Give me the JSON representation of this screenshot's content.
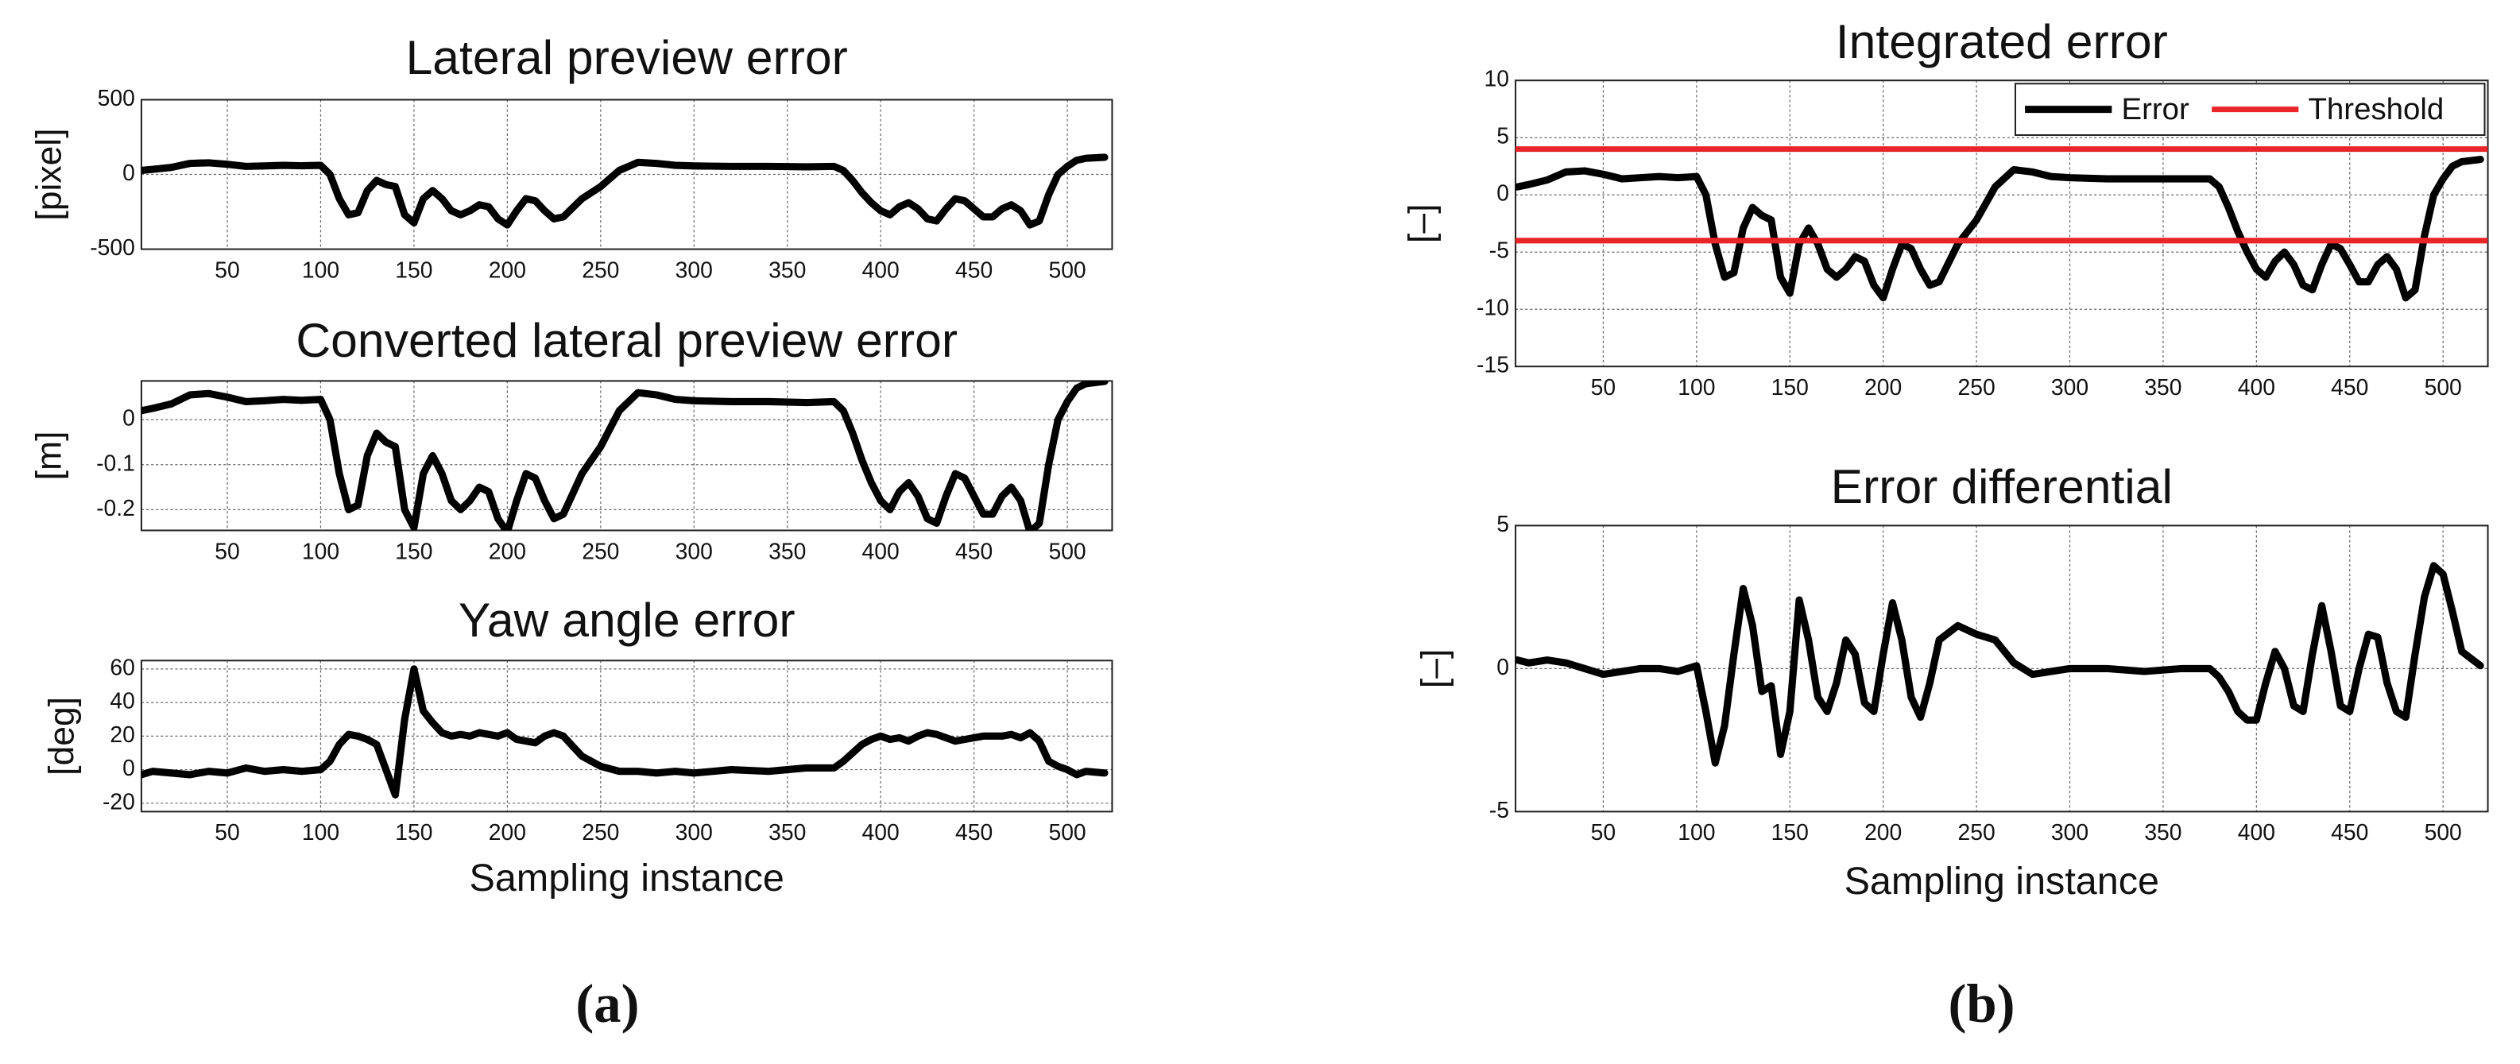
{
  "panel_labels": [
    "(a)",
    "(b)"
  ],
  "chart_data": [
    {
      "type": "line",
      "title": "Lateral preview error",
      "ylabel": "[pixel]",
      "color": "#000000",
      "grid": true,
      "xlim": [
        4,
        524
      ],
      "ylim": [
        -500,
        500
      ],
      "xticks": [
        50,
        100,
        150,
        200,
        250,
        300,
        350,
        400,
        450,
        500
      ],
      "yticks": [
        -500,
        0,
        500
      ],
      "x": [
        4,
        10,
        20,
        30,
        40,
        50,
        60,
        70,
        80,
        90,
        100,
        105,
        110,
        115,
        120,
        125,
        130,
        135,
        140,
        145,
        150,
        155,
        160,
        165,
        170,
        175,
        180,
        185,
        190,
        195,
        200,
        205,
        210,
        215,
        220,
        225,
        230,
        240,
        250,
        260,
        270,
        280,
        290,
        300,
        320,
        340,
        360,
        375,
        380,
        385,
        390,
        395,
        400,
        405,
        410,
        415,
        420,
        425,
        430,
        435,
        440,
        445,
        450,
        455,
        460,
        465,
        470,
        475,
        480,
        485,
        490,
        495,
        500,
        505,
        510,
        520
      ],
      "values": [
        27,
        34,
        47,
        74,
        78,
        68,
        54,
        57,
        61,
        58,
        61,
        0,
        -162,
        -270,
        -256,
        -108,
        -40,
        -68,
        -81,
        -270,
        -324,
        -162,
        -108,
        -162,
        -243,
        -270,
        -243,
        -203,
        -216,
        -297,
        -338,
        -243,
        -162,
        -176,
        -243,
        -297,
        -284,
        -162,
        -81,
        27,
        81,
        74,
        61,
        57,
        54,
        54,
        51,
        54,
        27,
        -41,
        -122,
        -189,
        -243,
        -270,
        -216,
        -189,
        -230,
        -297,
        -311,
        -230,
        -162,
        -176,
        -230,
        -284,
        -284,
        -230,
        -203,
        -243,
        -338,
        -311,
        -135,
        0,
        54,
        95,
        108,
        115
      ]
    },
    {
      "type": "line",
      "title": "Converted lateral preview error",
      "ylabel": "[m]",
      "color": "#000000",
      "grid": true,
      "xlim": [
        4,
        524
      ],
      "ylim": [
        -0.246,
        0.086
      ],
      "xticks": [
        50,
        100,
        150,
        200,
        250,
        300,
        350,
        400,
        450,
        500
      ],
      "yticks": [
        -0.2,
        -0.1,
        0
      ],
      "x": [
        4,
        10,
        20,
        30,
        40,
        50,
        60,
        70,
        80,
        90,
        100,
        105,
        110,
        115,
        120,
        125,
        130,
        135,
        140,
        145,
        150,
        155,
        160,
        165,
        170,
        175,
        180,
        185,
        190,
        195,
        200,
        205,
        210,
        215,
        220,
        225,
        230,
        240,
        250,
        260,
        270,
        280,
        290,
        300,
        320,
        340,
        360,
        375,
        380,
        385,
        390,
        395,
        400,
        405,
        410,
        415,
        420,
        425,
        430,
        435,
        440,
        445,
        450,
        455,
        460,
        465,
        470,
        475,
        480,
        485,
        490,
        495,
        500,
        505,
        510,
        520
      ],
      "values": [
        0.02,
        0.025,
        0.035,
        0.055,
        0.058,
        0.05,
        0.04,
        0.042,
        0.045,
        0.043,
        0.045,
        0.0,
        -0.12,
        -0.2,
        -0.19,
        -0.08,
        -0.03,
        -0.05,
        -0.06,
        -0.2,
        -0.24,
        -0.12,
        -0.08,
        -0.12,
        -0.18,
        -0.2,
        -0.18,
        -0.15,
        -0.16,
        -0.22,
        -0.25,
        -0.18,
        -0.12,
        -0.13,
        -0.18,
        -0.22,
        -0.21,
        -0.12,
        -0.06,
        0.02,
        0.06,
        0.055,
        0.045,
        0.042,
        0.04,
        0.04,
        0.038,
        0.04,
        0.02,
        -0.03,
        -0.09,
        -0.14,
        -0.18,
        -0.2,
        -0.16,
        -0.14,
        -0.17,
        -0.22,
        -0.23,
        -0.17,
        -0.12,
        -0.13,
        -0.17,
        -0.21,
        -0.21,
        -0.17,
        -0.15,
        -0.18,
        -0.25,
        -0.23,
        -0.1,
        0.0,
        0.04,
        0.07,
        0.08,
        0.085
      ]
    },
    {
      "type": "line",
      "title": "Yaw angle error",
      "ylabel": "[deg]",
      "xlabel": "Sampling instance",
      "color": "#000000",
      "grid": true,
      "xlim": [
        4,
        524
      ],
      "ylim": [
        -25,
        65
      ],
      "xticks": [
        50,
        100,
        150,
        200,
        250,
        300,
        350,
        400,
        450,
        500
      ],
      "yticks": [
        -20,
        0,
        20,
        40,
        60
      ],
      "x": [
        4,
        10,
        20,
        30,
        40,
        50,
        60,
        70,
        80,
        90,
        100,
        105,
        110,
        115,
        120,
        125,
        130,
        135,
        140,
        145,
        150,
        155,
        160,
        165,
        170,
        175,
        180,
        185,
        190,
        195,
        200,
        205,
        210,
        215,
        220,
        225,
        230,
        240,
        250,
        260,
        270,
        280,
        290,
        300,
        320,
        340,
        360,
        375,
        380,
        385,
        390,
        395,
        400,
        405,
        410,
        415,
        420,
        425,
        430,
        435,
        440,
        445,
        450,
        455,
        460,
        465,
        470,
        475,
        480,
        485,
        490,
        495,
        500,
        505,
        510,
        520
      ],
      "values": [
        -3,
        -1,
        -2,
        -3,
        -1,
        -2,
        1,
        -1,
        0,
        -1,
        0,
        5,
        15,
        21,
        20,
        18,
        15,
        0,
        -15,
        30,
        60,
        35,
        28,
        22,
        20,
        21,
        20,
        22,
        21,
        20,
        22,
        18,
        17,
        16,
        20,
        22,
        20,
        8,
        2,
        -1,
        -1,
        -2,
        -1,
        -2,
        0,
        -1,
        1,
        1,
        5,
        10,
        15,
        18,
        20,
        18,
        19,
        17,
        20,
        22,
        21,
        19,
        17,
        18,
        19,
        20,
        20,
        20,
        21,
        19,
        22,
        17,
        5,
        2,
        0,
        -3,
        -1,
        -2
      ]
    },
    {
      "type": "line",
      "title": "Integrated error",
      "ylabel": "[–]",
      "grid": true,
      "legend": "upper right",
      "xlim": [
        3,
        524
      ],
      "ylim": [
        -15,
        10
      ],
      "xticks": [
        50,
        100,
        150,
        200,
        250,
        300,
        350,
        400,
        450,
        500
      ],
      "yticks": [
        -15,
        -10,
        -5,
        0,
        5,
        10
      ],
      "x": [
        4,
        10,
        20,
        30,
        40,
        50,
        60,
        70,
        80,
        90,
        100,
        105,
        110,
        115,
        120,
        125,
        130,
        135,
        140,
        145,
        150,
        155,
        160,
        165,
        170,
        175,
        180,
        185,
        190,
        195,
        200,
        205,
        210,
        215,
        220,
        225,
        230,
        240,
        250,
        260,
        270,
        280,
        290,
        300,
        320,
        340,
        360,
        375,
        380,
        385,
        390,
        395,
        400,
        405,
        410,
        415,
        420,
        425,
        430,
        435,
        440,
        445,
        450,
        455,
        460,
        465,
        470,
        475,
        480,
        485,
        490,
        495,
        500,
        505,
        510,
        520
      ],
      "series": [
        {
          "name": "Error",
          "color": "#000000",
          "values": [
            0.7,
            0.9,
            1.3,
            2.0,
            2.1,
            1.8,
            1.4,
            1.5,
            1.6,
            1.5,
            1.6,
            0,
            -4.3,
            -7.2,
            -6.8,
            -2.9,
            -1.1,
            -1.8,
            -2.2,
            -7.2,
            -8.6,
            -4.3,
            -2.9,
            -4.3,
            -6.5,
            -7.2,
            -6.5,
            -5.4,
            -5.8,
            -7.9,
            -9.0,
            -6.5,
            -4.3,
            -4.7,
            -6.5,
            -7.9,
            -7.6,
            -4.3,
            -2.2,
            0.7,
            2.2,
            2.0,
            1.6,
            1.5,
            1.4,
            1.4,
            1.4,
            1.4,
            0.7,
            -1.1,
            -3.2,
            -5.0,
            -6.5,
            -7.2,
            -5.8,
            -5.0,
            -6.1,
            -7.9,
            -8.3,
            -6.1,
            -4.3,
            -4.7,
            -6.1,
            -7.6,
            -7.6,
            -6.1,
            -5.4,
            -6.5,
            -9.0,
            -8.3,
            -3.6,
            0,
            1.4,
            2.5,
            2.9,
            3.1
          ]
        },
        {
          "name": "Threshold",
          "color": "#e8262a",
          "hlines": [
            4,
            -4
          ]
        }
      ]
    },
    {
      "type": "line",
      "title": "Error differential",
      "ylabel": "[–]",
      "xlabel": "Sampling instance",
      "color": "#000000",
      "grid": true,
      "xlim": [
        3,
        524
      ],
      "ylim": [
        -5,
        5
      ],
      "xticks": [
        50,
        100,
        150,
        200,
        250,
        300,
        350,
        400,
        450,
        500
      ],
      "yticks": [
        -5,
        0,
        5
      ],
      "x": [
        4,
        10,
        20,
        30,
        40,
        50,
        60,
        70,
        80,
        90,
        100,
        105,
        110,
        115,
        120,
        125,
        130,
        135,
        140,
        145,
        150,
        155,
        160,
        165,
        170,
        175,
        180,
        185,
        190,
        195,
        200,
        205,
        210,
        215,
        220,
        225,
        230,
        240,
        250,
        260,
        270,
        280,
        290,
        300,
        320,
        340,
        360,
        375,
        380,
        385,
        390,
        395,
        400,
        405,
        410,
        415,
        420,
        425,
        430,
        435,
        440,
        445,
        450,
        455,
        460,
        465,
        470,
        475,
        480,
        485,
        490,
        495,
        500,
        505,
        510,
        520
      ],
      "values": [
        0.3,
        0.2,
        0.3,
        0.2,
        0.0,
        -0.2,
        -0.1,
        0,
        0,
        -0.1,
        0.1,
        -1.5,
        -3.3,
        -2.0,
        0.5,
        2.8,
        1.5,
        -0.8,
        -0.6,
        -3.0,
        -1.5,
        2.4,
        1.0,
        -1.0,
        -1.5,
        -0.5,
        1.0,
        0.5,
        -1.2,
        -1.5,
        0.5,
        2.3,
        1.0,
        -1.0,
        -1.7,
        -0.5,
        1.0,
        1.5,
        1.2,
        1.0,
        0.2,
        -0.2,
        -0.1,
        0,
        0,
        -0.1,
        0.0,
        0,
        -0.3,
        -0.8,
        -1.5,
        -1.8,
        -1.8,
        -0.5,
        0.6,
        0,
        -1.3,
        -1.5,
        0.5,
        2.2,
        0.6,
        -1.3,
        -1.5,
        0.0,
        1.2,
        1.1,
        -0.5,
        -1.5,
        -1.7,
        0.5,
        2.5,
        3.6,
        3.3,
        2.0,
        0.6,
        0.1
      ]
    }
  ]
}
